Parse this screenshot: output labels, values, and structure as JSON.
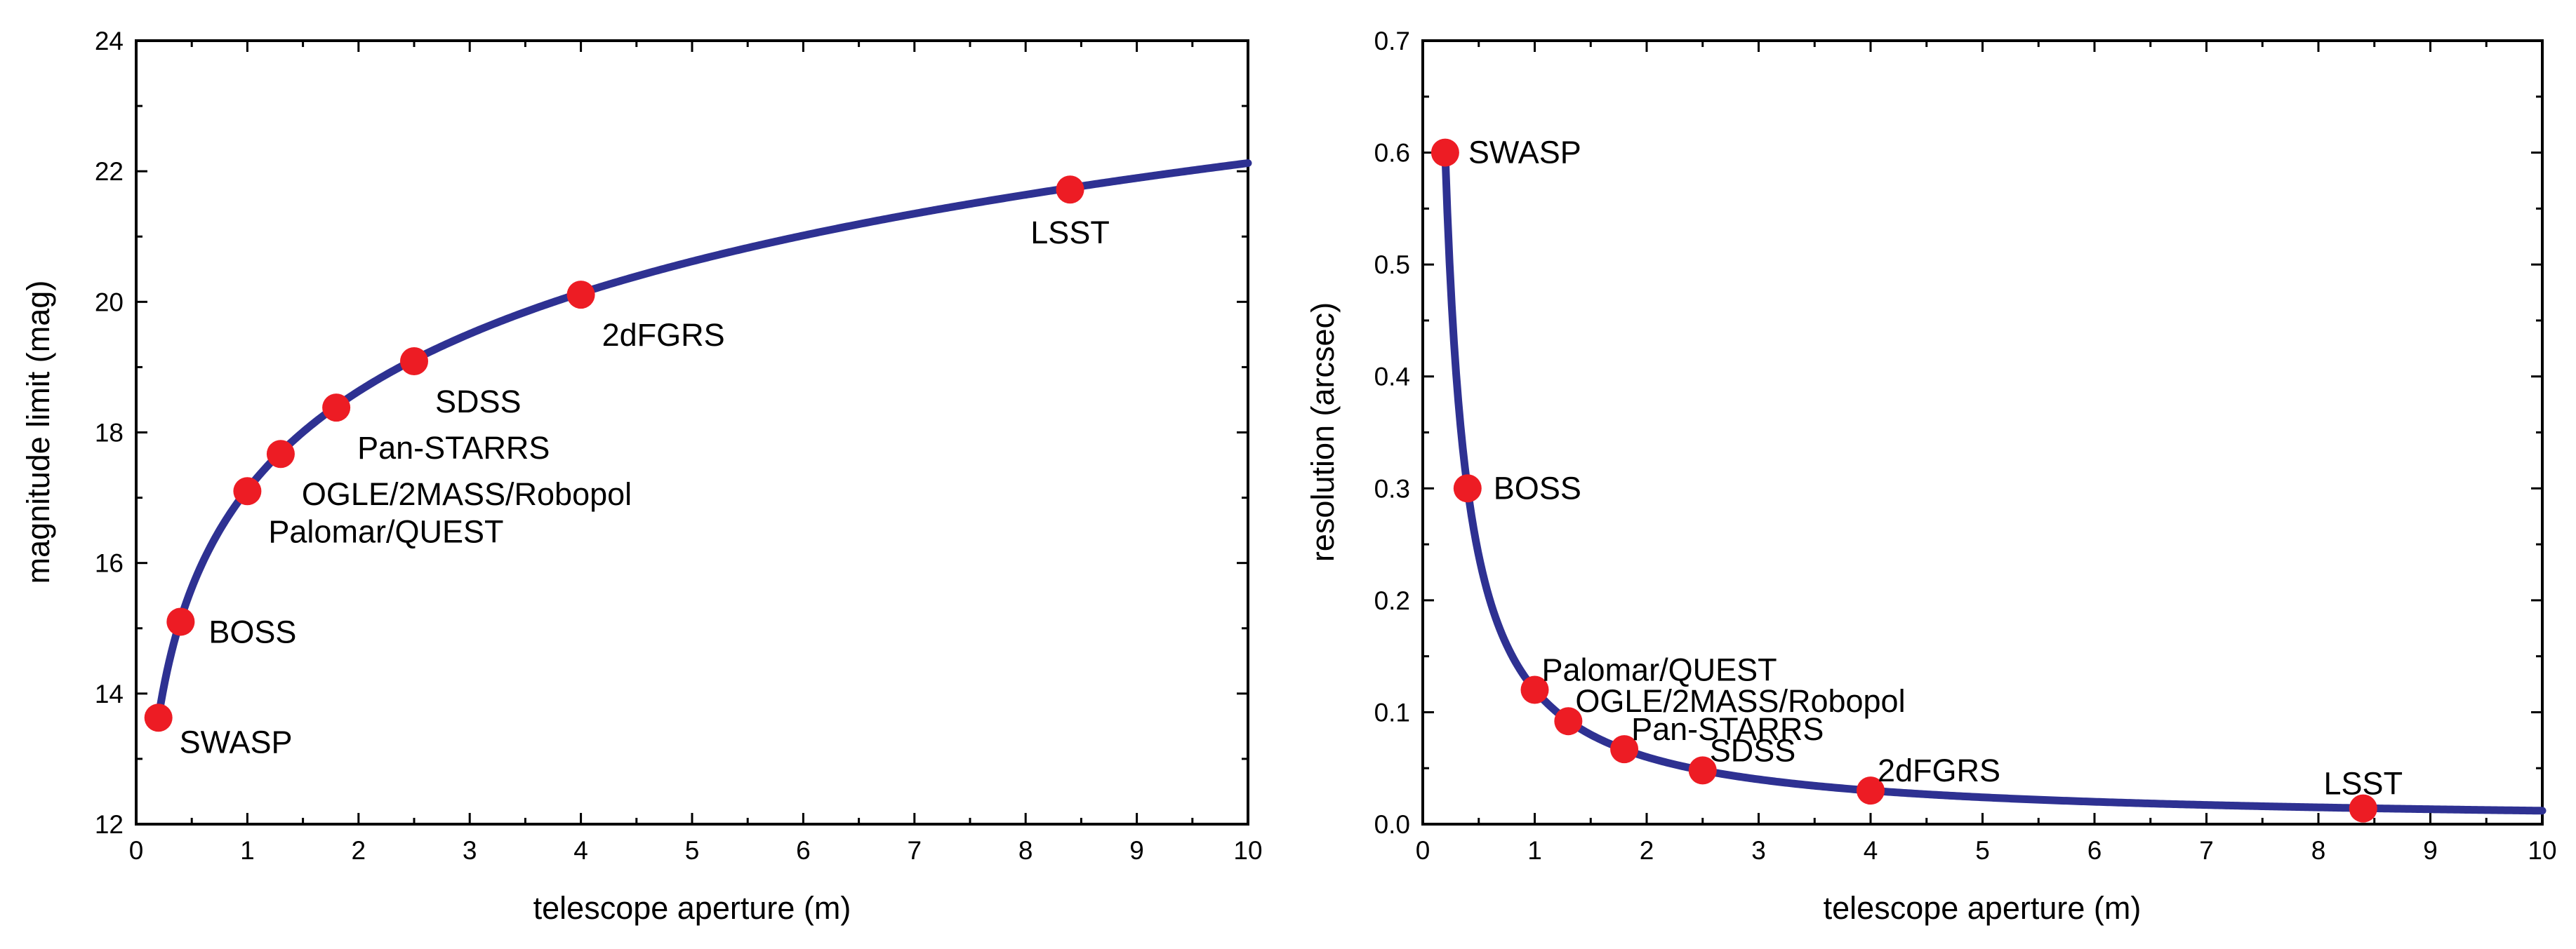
{
  "chart_data": [
    {
      "type": "line",
      "title": "",
      "xlabel": "telescope aperture (m)",
      "ylabel": "magnitude limit (mag)",
      "xlim": [
        0,
        10
      ],
      "ylim": [
        12,
        24
      ],
      "x_ticks": [
        0,
        1,
        2,
        3,
        4,
        5,
        6,
        7,
        8,
        9,
        10
      ],
      "y_ticks": [
        12,
        14,
        16,
        18,
        20,
        22,
        24
      ],
      "grid": false,
      "curve": {
        "name": "magnitude limit",
        "color": "#2e3192",
        "x_range": [
          0.2,
          10
        ]
      },
      "points": [
        {
          "label": "SWASP",
          "x": 0.2,
          "y": 13.63,
          "label_pos": "below-right"
        },
        {
          "label": "BOSS",
          "x": 0.4,
          "y": 15.1,
          "label_pos": "right"
        },
        {
          "label": "Palomar/QUEST",
          "x": 1.0,
          "y": 17.1,
          "label_pos": "below-right"
        },
        {
          "label": "OGLE/2MASS/Robopol",
          "x": 1.3,
          "y": 17.67,
          "label_pos": "below-right"
        },
        {
          "label": "Pan-STARRS",
          "x": 1.8,
          "y": 18.38,
          "label_pos": "below-right"
        },
        {
          "label": "SDSS",
          "x": 2.5,
          "y": 19.09,
          "label_pos": "below-right"
        },
        {
          "label": "2dFGRS",
          "x": 4.0,
          "y": 20.11,
          "label_pos": "below-right"
        },
        {
          "label": "LSST",
          "x": 8.4,
          "y": 21.72,
          "label_pos": "below"
        }
      ],
      "point_color": "#ed1c24"
    },
    {
      "type": "line",
      "title": "",
      "xlabel": "telescope aperture (m)",
      "ylabel": "resolution (arcsec)",
      "xlim": [
        0,
        10
      ],
      "ylim": [
        0,
        0.7
      ],
      "x_ticks": [
        0,
        1,
        2,
        3,
        4,
        5,
        6,
        7,
        8,
        9,
        10
      ],
      "y_ticks": [
        "0.0",
        "0.1",
        "0.2",
        "0.3",
        "0.4",
        "0.5",
        "0.6",
        "0.7"
      ],
      "grid": false,
      "curve": {
        "name": "resolution",
        "color": "#2e3192",
        "x_range": [
          0.2,
          10
        ]
      },
      "points": [
        {
          "label": "SWASP",
          "x": 0.2,
          "y": 0.6,
          "label_pos": "right"
        },
        {
          "label": "BOSS",
          "x": 0.4,
          "y": 0.3,
          "label_pos": "right"
        },
        {
          "label": "Palomar/QUEST",
          "x": 1.0,
          "y": 0.12,
          "label_pos": "above-right"
        },
        {
          "label": "OGLE/2MASS/Robopol",
          "x": 1.3,
          "y": 0.092,
          "label_pos": "above-right"
        },
        {
          "label": "Pan-STARRS",
          "x": 1.8,
          "y": 0.067,
          "label_pos": "above-right"
        },
        {
          "label": "SDSS",
          "x": 2.5,
          "y": 0.048,
          "label_pos": "above-right"
        },
        {
          "label": "2dFGRS",
          "x": 4.0,
          "y": 0.03,
          "label_pos": "above-right"
        },
        {
          "label": "LSST",
          "x": 8.4,
          "y": 0.014,
          "label_pos": "above"
        }
      ],
      "point_color": "#ed1c24"
    }
  ]
}
